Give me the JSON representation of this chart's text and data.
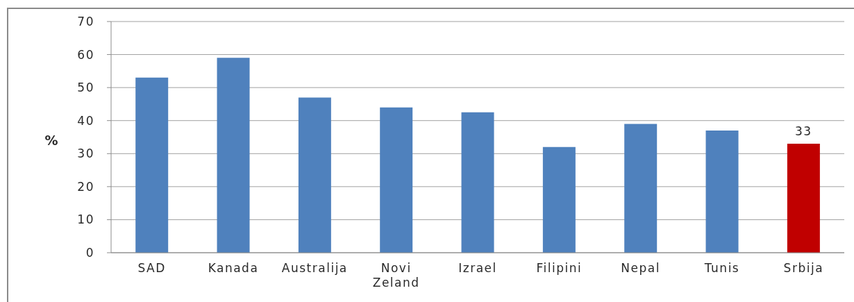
{
  "chart_data": {
    "type": "bar",
    "ylabel": "%",
    "categories": [
      "SAD",
      "Kanada",
      "Australija",
      "Novi Zeland",
      "Izrael",
      "Filipini",
      "Nepal",
      "Tunis",
      "Srbija"
    ],
    "values": [
      53,
      59,
      47,
      44,
      42.5,
      32,
      39,
      37,
      33
    ],
    "colors": [
      "#4f81bd",
      "#4f81bd",
      "#4f81bd",
      "#4f81bd",
      "#4f81bd",
      "#4f81bd",
      "#4f81bd",
      "#4f81bd",
      "#c00000"
    ],
    "value_labels": [
      null,
      null,
      null,
      null,
      null,
      null,
      null,
      null,
      "33"
    ],
    "ylim": [
      0,
      70
    ],
    "yticks": [
      0,
      10,
      20,
      30,
      40,
      50,
      60,
      70
    ],
    "grid": "y"
  }
}
